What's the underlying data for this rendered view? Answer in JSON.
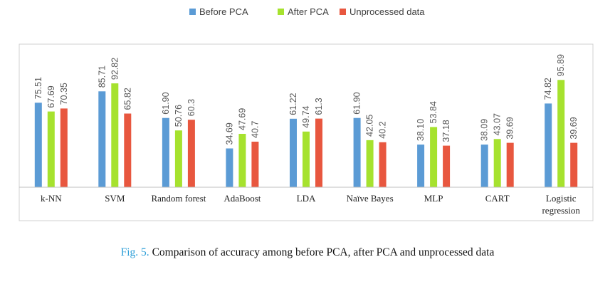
{
  "colors": {
    "before_pca": "#5b9bd5",
    "after_pca": "#a6e22e",
    "unprocessed": "#e8573f",
    "frame": "#d0d0d0"
  },
  "caption": {
    "fig_num": "Fig. 5.",
    "text": "Comparison of accuracy among before PCA, after PCA and unprocessed data"
  },
  "chart_data": {
    "type": "bar",
    "legend_position": "top-center",
    "grid": false,
    "categories": [
      "k-NN",
      "SVM",
      "Random forest",
      "AdaBoost",
      "LDA",
      "Naïve Bayes",
      "MLP",
      "CART",
      "Logistic regression"
    ],
    "series": [
      {
        "name": "Before PCA",
        "color": "#5b9bd5",
        "values": [
          75.51,
          85.71,
          61.9,
          34.69,
          61.22,
          61.9,
          38.1,
          38.09,
          74.82
        ],
        "labels": [
          "75.51",
          "85.71",
          "61.90",
          "34.69",
          "61.22",
          "61.90",
          "38.10",
          "38.09",
          "74.82"
        ]
      },
      {
        "name": "After PCA",
        "color": "#a6e22e",
        "values": [
          67.69,
          92.82,
          50.76,
          47.69,
          49.74,
          42.05,
          53.84,
          43.07,
          95.89
        ],
        "labels": [
          "67.69",
          "92.82",
          "50.76",
          "47.69",
          "49.74",
          "42.05",
          "53.84",
          "43.07",
          "95.89"
        ]
      },
      {
        "name": "Unprocessed data",
        "color": "#e8573f",
        "values": [
          70.35,
          65.82,
          60.3,
          40.7,
          61.3,
          40.2,
          37.18,
          39.69,
          39.69
        ],
        "labels": [
          "70.35",
          "65.82",
          "60.3",
          "40.7",
          "61.3",
          "40.2",
          "37.18",
          "39.69",
          "39.69"
        ]
      }
    ]
  }
}
